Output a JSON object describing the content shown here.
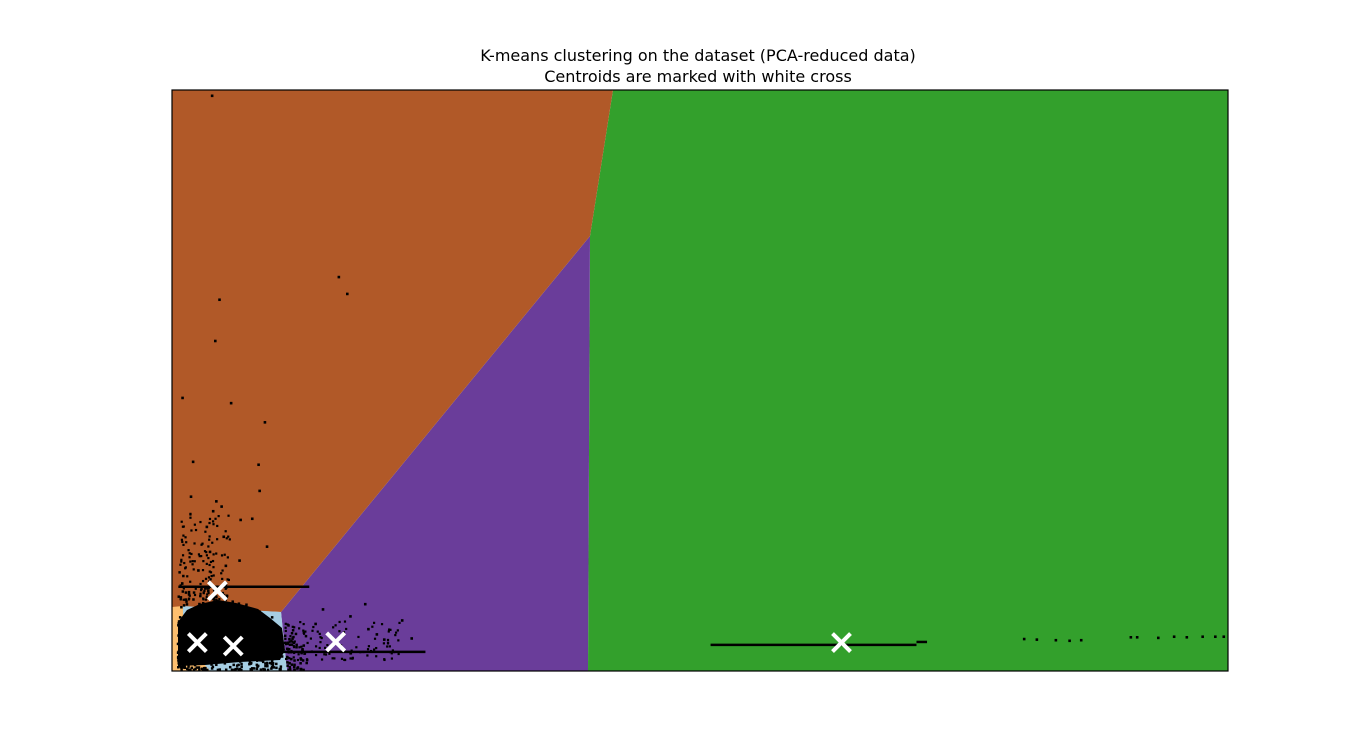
{
  "chart_data": {
    "type": "scatter",
    "title": "K-means clustering on the dataset (PCA-reduced data)",
    "subtitle": "Centroids are marked with white cross",
    "xlabel": "",
    "ylabel": "",
    "xlim": [
      0,
      100
    ],
    "ylim": [
      0,
      100
    ],
    "grid": false,
    "legend": "none",
    "region_colors": {
      "orange_light": "#FDBF6F",
      "light_blue": "#A6CEE3",
      "brown": "#B15928",
      "purple": "#6A3D9A",
      "green": "#33A02C"
    },
    "centroid_color": "#ffffff",
    "point_color": "#000000",
    "centroids": [
      {
        "x": 2.4,
        "y": 4.9
      },
      {
        "x": 4.3,
        "y": 13.8
      },
      {
        "x": 5.8,
        "y": 4.3
      },
      {
        "x": 15.5,
        "y": 5.0
      },
      {
        "x": 63.4,
        "y": 4.9
      }
    ],
    "points_sparse": [
      {
        "x": 3.8,
        "y": 99.0
      },
      {
        "x": 1.0,
        "y": 47.0
      },
      {
        "x": 15.8,
        "y": 67.8
      },
      {
        "x": 16.6,
        "y": 64.9
      },
      {
        "x": 4.5,
        "y": 63.9
      },
      {
        "x": 4.1,
        "y": 56.8
      },
      {
        "x": 5.6,
        "y": 46.1
      },
      {
        "x": 8.8,
        "y": 42.8
      },
      {
        "x": 8.2,
        "y": 35.5
      },
      {
        "x": 2.0,
        "y": 36.0
      },
      {
        "x": 8.3,
        "y": 31.0
      },
      {
        "x": 1.8,
        "y": 30.0
      },
      {
        "x": 4.2,
        "y": 29.2
      },
      {
        "x": 3.9,
        "y": 27.5
      },
      {
        "x": 4.7,
        "y": 28.3
      },
      {
        "x": 9.0,
        "y": 21.4
      },
      {
        "x": 6.5,
        "y": 26.0
      },
      {
        "x": 3.3,
        "y": 24.8
      },
      {
        "x": 7.6,
        "y": 26.2
      },
      {
        "x": 4.9,
        "y": 23.1
      },
      {
        "x": 3.6,
        "y": 20.5
      },
      {
        "x": 6.4,
        "y": 19.0
      },
      {
        "x": 2.5,
        "y": 17.3
      },
      {
        "x": 5.1,
        "y": 18.1
      },
      {
        "x": 18.3,
        "y": 11.5
      },
      {
        "x": 21.8,
        "y": 8.7
      },
      {
        "x": 19.4,
        "y": 6.3
      },
      {
        "x": 14.3,
        "y": 10.6
      },
      {
        "x": 16.9,
        "y": 9.4
      },
      {
        "x": 20.1,
        "y": 5.4
      },
      {
        "x": 22.7,
        "y": 5.6
      },
      {
        "x": 18.6,
        "y": 7.2
      },
      {
        "x": 13.6,
        "y": 8.1
      },
      {
        "x": 80.7,
        "y": 5.5
      },
      {
        "x": 81.9,
        "y": 5.4
      },
      {
        "x": 83.7,
        "y": 5.3
      },
      {
        "x": 85.0,
        "y": 5.2
      },
      {
        "x": 86.1,
        "y": 5.3
      },
      {
        "x": 90.8,
        "y": 5.8
      },
      {
        "x": 91.4,
        "y": 5.8
      },
      {
        "x": 93.4,
        "y": 5.7
      },
      {
        "x": 94.9,
        "y": 5.9
      },
      {
        "x": 96.1,
        "y": 5.8
      },
      {
        "x": 97.6,
        "y": 5.9
      },
      {
        "x": 98.8,
        "y": 5.9
      },
      {
        "x": 99.6,
        "y": 5.9
      }
    ],
    "point_lines": [
      {
        "x0": 0.6,
        "x1": 13.0,
        "y": 14.5
      },
      {
        "x0": 0.5,
        "x1": 24.0,
        "y": 3.3
      },
      {
        "x0": 51.0,
        "x1": 70.5,
        "y": 4.5
      },
      {
        "x0": 70.5,
        "x1": 71.5,
        "y": 5.0
      }
    ]
  }
}
